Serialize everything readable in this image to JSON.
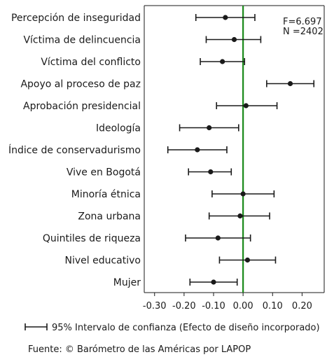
{
  "chart_data": {
    "type": "dot-whisker",
    "categories": [
      "Percepción de inseguridad",
      "Víctima de delincuencia",
      "Víctima del conflicto",
      "Apoyo al proceso de paz",
      "Aprobación presidencial",
      "Ideología",
      "Índice de conservadurismo",
      "Vive en Bogotá",
      "Minoría étnica",
      "Zona urbana",
      "Quintiles de riqueza",
      "Nivel educativo",
      "Mujer"
    ],
    "estimates": [
      -0.06,
      -0.03,
      -0.07,
      0.16,
      0.01,
      -0.115,
      -0.155,
      -0.11,
      0.0,
      -0.01,
      -0.085,
      0.015,
      -0.1
    ],
    "ci_low": [
      -0.16,
      -0.125,
      -0.145,
      0.08,
      -0.09,
      -0.215,
      -0.255,
      -0.185,
      -0.105,
      -0.115,
      -0.195,
      -0.08,
      -0.18
    ],
    "ci_high": [
      0.04,
      0.06,
      0.005,
      0.24,
      0.115,
      -0.015,
      -0.055,
      -0.04,
      0.105,
      0.09,
      0.025,
      0.11,
      -0.02
    ],
    "x_ticks": [
      -0.3,
      -0.2,
      -0.1,
      0.0,
      0.1,
      0.2
    ],
    "x_tick_labels": [
      "-0.30",
      "-0.20",
      "-0.10",
      "0.00",
      "0.10",
      "0.20"
    ],
    "xlim": [
      -0.335,
      0.275
    ],
    "reference_line": {
      "value": 0.0,
      "color": "#1a8a1a"
    },
    "stats": {
      "f": "F=6.697",
      "n": "N =2402"
    },
    "legend": {
      "label": "95% Intervalo de confianza (Efecto de diseño incorporado)",
      "position": "bottom"
    },
    "source": "Fuente: © Barómetro de las Américas por LAPOP",
    "grid": false,
    "colors": {
      "marks": "#1a1a1a",
      "reference": "#1a8a1a",
      "axis": "#1a1a1a"
    }
  }
}
